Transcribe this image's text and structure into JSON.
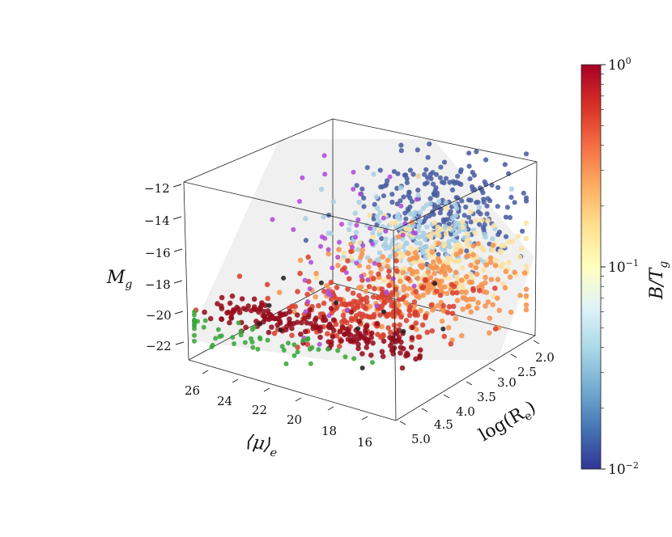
{
  "chart_data": {
    "type": "scatter",
    "projection": "3d",
    "axes": {
      "x": {
        "label": "⟨μ⟩",
        "label_sub": "e",
        "ticks": [
          "26",
          "24",
          "22",
          "20",
          "18",
          "16"
        ]
      },
      "y": {
        "label": "log(R",
        "label_sub": "e",
        "label_end": ")",
        "ticks": [
          "2.0",
          "2.5",
          "3.0",
          "3.5",
          "4.0",
          "4.5",
          "5.0"
        ]
      },
      "z": {
        "label": "M",
        "label_sub": "g",
        "ticks": [
          "−12",
          "−14",
          "−16",
          "−18",
          "−20",
          "−22"
        ]
      }
    },
    "colorbar": {
      "label": "B/T",
      "label_sub": "g",
      "scale": "log",
      "ticks": [
        {
          "base": "10",
          "exp": "0"
        },
        {
          "base": "10",
          "exp": "−1"
        },
        {
          "base": "10",
          "exp": "−2"
        }
      ],
      "colormap": [
        "#313695",
        "#4575b4",
        "#74add1",
        "#abd9e9",
        "#e0f3f8",
        "#ffffbf",
        "#fee090",
        "#fdae61",
        "#f46d43",
        "#d73027",
        "#a50026"
      ]
    },
    "point_groups": [
      {
        "name": "blue",
        "color": "#4a5fa3",
        "count": 260
      },
      {
        "name": "light",
        "color": "#a9cfe4",
        "count": 190
      },
      {
        "name": "yellow",
        "color": "#fde1a0",
        "count": 180
      },
      {
        "name": "orange",
        "color": "#f6924f",
        "count": 240
      },
      {
        "name": "red",
        "color": "#d8402f",
        "count": 220
      },
      {
        "name": "dark",
        "color": "#950d1c",
        "count": 190
      },
      {
        "name": "purple",
        "color": "#b04ad6",
        "count": 55
      },
      {
        "name": "green",
        "color": "#3aa63a",
        "count": 55
      },
      {
        "name": "black",
        "color": "#202020",
        "count": 12
      }
    ],
    "grid": false,
    "plane": "fitted plane (light grey)"
  }
}
